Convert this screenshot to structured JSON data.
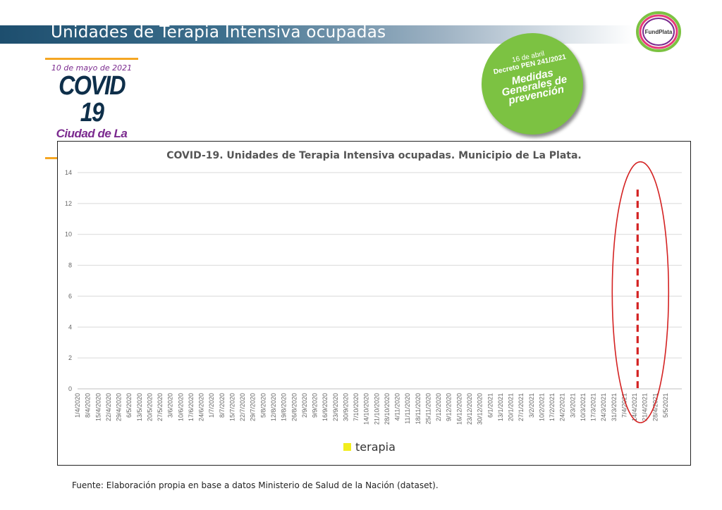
{
  "header": {
    "title": "Unidades de Terapia Intensiva ocupadas",
    "logo_text": "FundPlata"
  },
  "badge": {
    "date": "10 de mayo de 2021",
    "headline": "COVID 19",
    "city": "Ciudad de La Plata"
  },
  "decree": {
    "line1": "16 de abril",
    "line2": "Decreto PEN 241/2021",
    "line3": "Medidas",
    "line4": "Generales de",
    "line5": "prevención"
  },
  "footer": {
    "source": "Fuente: Elaboración propia en base a datos Ministerio de Salud de la Nación (dataset)."
  },
  "colors": {
    "series": "#f2ed1d",
    "marker": "#d42222",
    "band": "#1d4e6e",
    "circle": "#7cc242"
  },
  "chart_data": {
    "type": "area",
    "title": "COVID-19. Unidades de Terapia Intensiva ocupadas. Municipio de La Plata.",
    "ylim": [
      0,
      14
    ],
    "yticks": [
      0,
      2,
      4,
      6,
      8,
      10,
      12,
      14
    ],
    "x_start": "1/4/2020",
    "x_tick_labels": [
      "1/4/2020",
      "8/4/2020",
      "15/4/2020",
      "22/4/2020",
      "29/4/2020",
      "6/5/2020",
      "13/5/2020",
      "20/5/2020",
      "27/5/2020",
      "3/6/2020",
      "10/6/2020",
      "17/6/2020",
      "24/6/2020",
      "1/7/2020",
      "8/7/2020",
      "15/7/2020",
      "22/7/2020",
      "29/7/2020",
      "5/8/2020",
      "12/8/2020",
      "19/8/2020",
      "26/8/2020",
      "2/9/2020",
      "9/9/2020",
      "16/9/2020",
      "23/9/2020",
      "30/9/2020",
      "7/10/2020",
      "14/10/2020",
      "21/10/2020",
      "28/10/2020",
      "4/11/2020",
      "11/11/2020",
      "18/11/2020",
      "25/11/2020",
      "2/12/2020",
      "9/12/2020",
      "16/12/2020",
      "23/12/2020",
      "30/12/2020",
      "6/1/2021",
      "13/1/2021",
      "20/1/2021",
      "27/1/2021",
      "3/2/2021",
      "10/2/2021",
      "17/2/2021",
      "24/2/2021",
      "3/3/2021",
      "10/3/2021",
      "17/3/2021",
      "24/3/2021",
      "31/3/2021",
      "7/4/2021",
      "14/4/2021",
      "21/4/2021",
      "28/4/2021",
      "5/5/2021"
    ],
    "grid": true,
    "legend_position": "bottom",
    "series": [
      {
        "name": "terapia",
        "values": [
          0,
          0,
          0,
          0,
          0,
          0,
          0,
          0,
          0,
          0,
          0,
          0,
          0,
          0,
          0,
          0,
          0,
          0,
          0,
          0,
          0,
          0,
          0,
          0,
          0,
          0,
          0,
          0,
          0,
          0,
          0,
          0,
          0,
          0,
          0,
          0,
          0,
          0,
          0,
          0,
          0,
          0,
          0,
          0,
          0,
          0,
          0,
          0,
          0,
          0,
          0,
          0,
          0,
          0,
          0,
          0,
          0,
          0,
          0,
          0,
          0,
          0,
          0,
          0,
          0,
          0,
          0,
          0,
          0,
          0,
          0,
          0,
          0,
          0,
          0,
          0,
          0,
          0,
          0,
          0,
          0,
          0,
          0,
          0,
          0,
          0,
          0,
          0,
          0,
          0,
          0,
          0,
          0,
          0,
          0,
          0,
          0,
          0,
          0,
          0,
          0,
          0,
          0,
          0,
          0,
          0,
          0,
          0,
          0,
          0,
          0,
          0,
          0,
          0,
          0,
          0,
          0,
          0,
          0,
          0,
          0,
          0,
          0,
          0,
          0,
          0,
          0,
          0,
          0,
          0,
          0,
          0,
          0,
          0,
          0,
          0,
          0,
          0,
          0,
          0,
          0,
          0,
          0,
          0,
          0,
          0,
          0,
          0,
          0,
          0,
          0,
          0,
          0,
          0,
          0,
          0,
          0,
          0,
          0,
          0,
          0,
          0,
          0,
          0,
          0,
          0,
          0,
          0,
          0,
          0,
          0,
          0,
          0,
          0,
          0,
          0,
          0,
          0,
          0,
          0,
          0,
          0,
          0,
          0,
          0,
          0,
          0,
          0,
          0,
          0,
          0,
          0,
          0,
          0,
          0,
          0,
          0,
          0,
          0,
          0,
          0,
          0,
          0,
          0,
          0,
          0,
          0,
          0,
          0,
          0,
          0,
          0,
          0,
          0,
          0,
          0,
          0,
          0,
          0,
          0,
          0,
          0,
          0,
          0,
          0,
          0,
          0,
          0,
          0,
          0,
          0,
          0,
          0,
          0,
          0,
          0,
          0,
          0,
          0,
          0,
          0,
          0,
          0,
          0,
          0,
          0,
          0,
          0,
          0,
          0,
          0,
          0,
          0,
          0,
          0,
          0,
          0,
          0,
          0,
          0,
          0,
          0,
          0,
          0,
          0,
          0,
          0,
          0,
          0,
          0,
          0,
          0,
          0,
          0,
          0,
          0,
          0,
          0,
          0,
          0,
          0,
          0,
          0,
          0,
          0,
          0,
          0,
          0,
          0,
          0,
          0,
          0,
          0,
          0,
          0,
          0,
          0,
          0,
          0,
          0,
          0,
          0,
          0,
          0,
          0,
          0,
          0,
          0,
          0,
          0,
          0,
          0,
          0,
          0,
          0,
          0,
          0,
          0,
          0,
          0,
          0,
          0,
          0,
          0,
          0,
          0,
          0,
          0,
          0,
          0,
          0,
          0,
          0,
          0,
          0,
          0,
          0,
          0,
          0,
          0,
          0,
          0,
          0,
          0,
          0,
          0,
          0,
          0,
          0,
          0,
          0,
          0,
          0,
          0,
          0,
          0,
          0,
          0,
          0,
          0,
          0,
          0,
          0,
          0,
          0,
          0,
          0,
          0,
          0,
          0,
          0,
          0,
          0,
          0,
          0,
          0,
          0,
          0,
          0,
          0,
          0,
          0,
          0,
          0,
          0,
          0,
          0,
          0,
          0,
          0,
          0,
          0,
          0,
          0,
          0,
          0,
          0,
          0,
          0,
          0,
          0,
          0,
          0,
          0,
          0,
          0,
          0,
          0,
          0,
          0,
          0
        ]
      }
    ],
    "annotations": [
      "16/4/2021"
    ]
  }
}
